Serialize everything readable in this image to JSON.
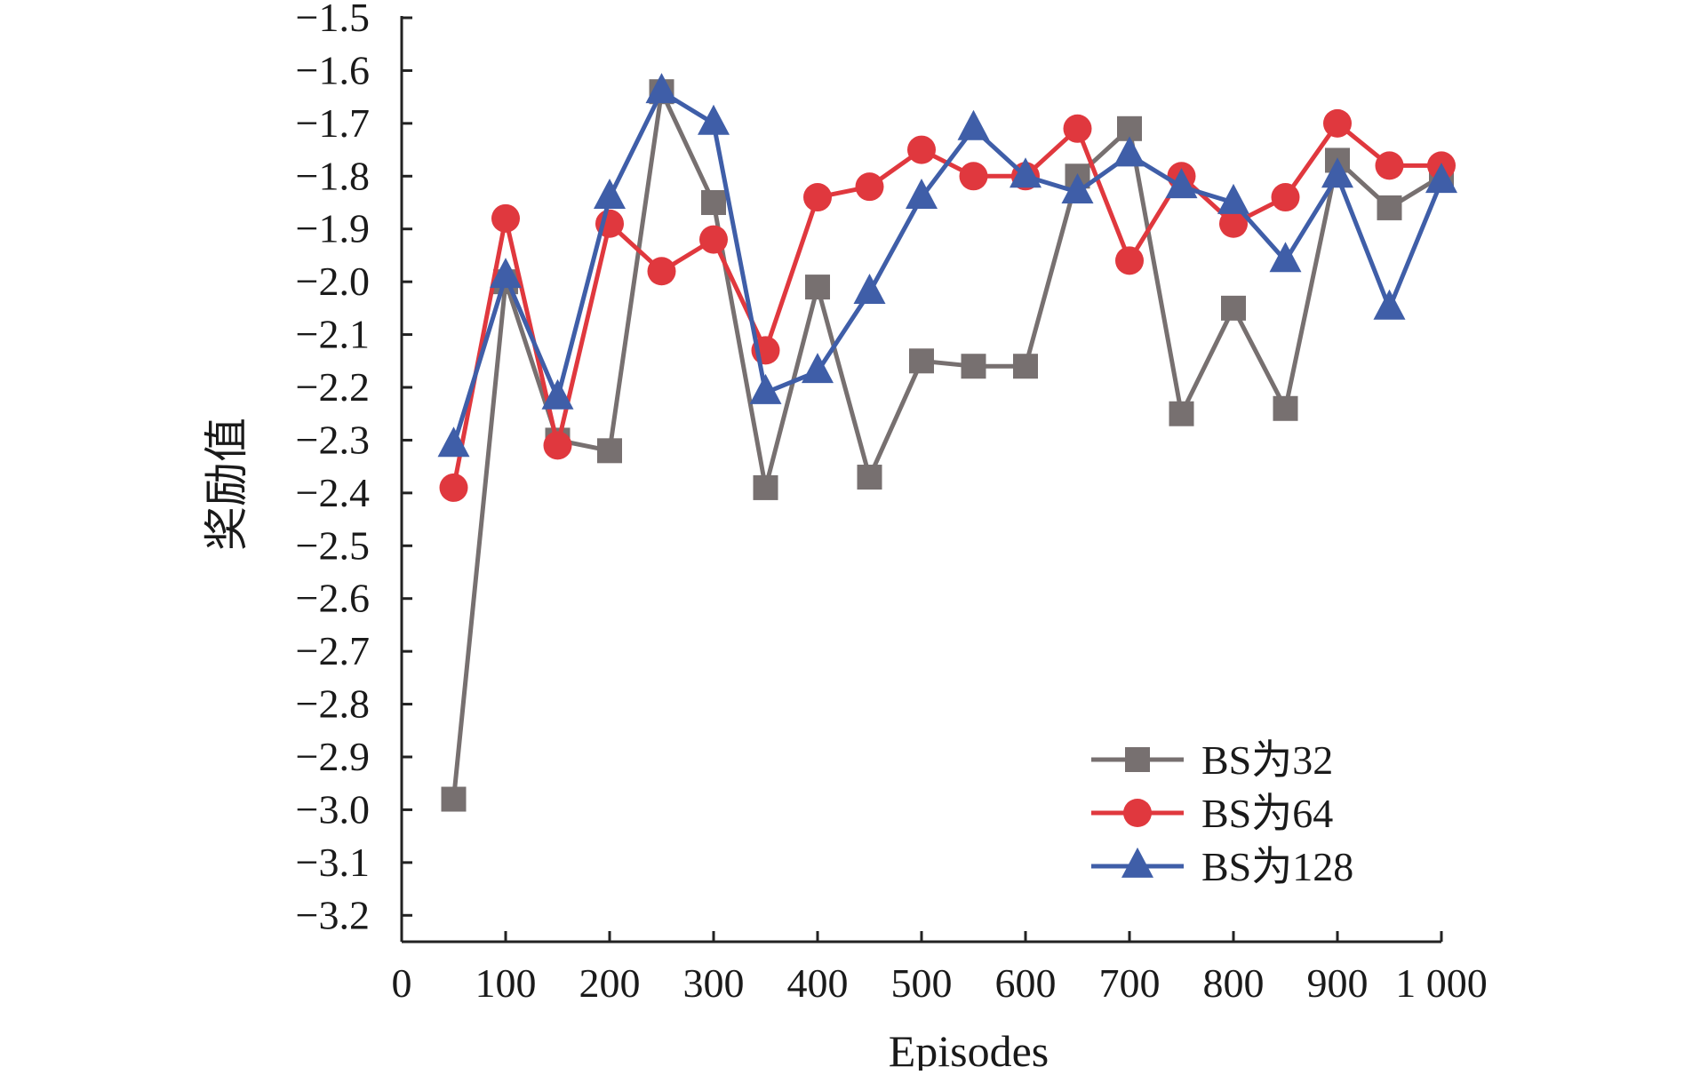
{
  "chart_data": {
    "type": "line",
    "title": "",
    "xlabel": "Episodes",
    "ylabel": "奖励值",
    "xlim": [
      0,
      1000
    ],
    "ylim": [
      -3.25,
      -1.5
    ],
    "x_ticks": [
      0,
      100,
      200,
      300,
      400,
      500,
      600,
      700,
      800,
      900,
      1000
    ],
    "x_tick_labels": [
      "0",
      "100",
      "200",
      "300",
      "400",
      "500",
      "600",
      "700",
      "800",
      "900",
      "1 000"
    ],
    "y_ticks": [
      -1.5,
      -1.6,
      -1.7,
      -1.8,
      -1.9,
      -2.0,
      -2.1,
      -2.2,
      -2.3,
      -2.4,
      -2.5,
      -2.6,
      -2.7,
      -2.8,
      -2.9,
      -3.0,
      -3.1,
      -3.2
    ],
    "y_tick_labels": [
      "−1.5",
      "−1.6",
      "−1.7",
      "−1.8",
      "−1.9",
      "−2.0",
      "−2.1",
      "−2.2",
      "−2.3",
      "−2.4",
      "−2.5",
      "−2.6",
      "−2.7",
      "−2.8",
      "−2.9",
      "−3.0",
      "−3.1",
      "−3.2"
    ],
    "grid": false,
    "legend_position": "bottom-right",
    "x": [
      50,
      100,
      150,
      200,
      250,
      300,
      350,
      400,
      450,
      500,
      550,
      600,
      650,
      700,
      750,
      800,
      850,
      900,
      950,
      1000
    ],
    "series": [
      {
        "name": "BS为32",
        "color": "#777070",
        "marker": "square",
        "values": [
          -2.98,
          -2.0,
          -2.3,
          -2.32,
          -1.64,
          -1.85,
          -2.39,
          -2.01,
          -2.37,
          -2.15,
          -2.16,
          -2.16,
          -1.8,
          -1.71,
          -2.25,
          -2.05,
          -2.24,
          -1.77,
          -1.86,
          -1.8
        ]
      },
      {
        "name": "BS为64",
        "color": "#e0383e",
        "marker": "circle",
        "values": [
          -2.39,
          -1.88,
          -2.31,
          -1.89,
          -1.98,
          -1.92,
          -2.13,
          -1.84,
          -1.82,
          -1.75,
          -1.8,
          -1.8,
          -1.71,
          -1.96,
          -1.8,
          -1.89,
          -1.84,
          -1.7,
          -1.78,
          -1.78
        ]
      },
      {
        "name": "BS为128",
        "color": "#3f5ea8",
        "marker": "triangle",
        "values": [
          -2.31,
          -1.99,
          -2.22,
          -1.84,
          -1.64,
          -1.7,
          -2.21,
          -2.17,
          -2.02,
          -1.84,
          -1.71,
          -1.8,
          -1.83,
          -1.76,
          -1.82,
          -1.85,
          -1.96,
          -1.8,
          -2.05,
          -1.81
        ]
      }
    ]
  }
}
